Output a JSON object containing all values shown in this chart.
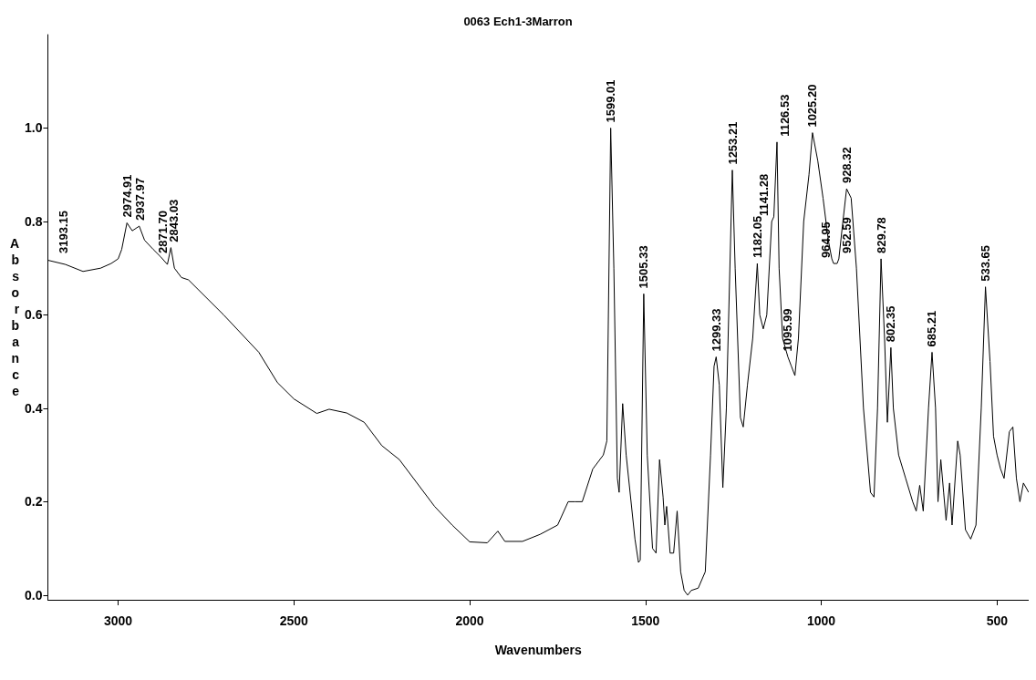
{
  "chart_data": {
    "type": "line",
    "title": "0063 Ech1-3Marron",
    "xlabel": "Wavenumbers",
    "ylabel": "Absorbance",
    "xlim": [
      3200,
      410
    ],
    "ylim": [
      -0.01,
      1.2
    ],
    "xticks": [
      3000,
      2500,
      2000,
      1500,
      1000,
      500
    ],
    "yticks": [
      {
        "value": 0,
        "label": "0.0"
      },
      {
        "value": 0.2,
        "label": "0.2"
      },
      {
        "value": 0.4,
        "label": "0.4"
      },
      {
        "value": 0.6,
        "label": "0.6"
      },
      {
        "value": 0.8,
        "label": "0.8"
      },
      {
        "value": 1.0,
        "label": "1.0"
      }
    ],
    "grid": false,
    "marker": "none",
    "line_style": "solid",
    "x": [
      3200,
      3150,
      3100,
      3050,
      3020,
      3000,
      2990,
      2975,
      2960,
      2940,
      2925,
      2900,
      2880,
      2860,
      2850,
      2840,
      2820,
      2800,
      2700,
      2600,
      2547,
      2500,
      2435,
      2400,
      2350,
      2300,
      2250,
      2200,
      2100,
      2050,
      2000,
      1950,
      1920,
      1900,
      1850,
      1800,
      1750,
      1720,
      1700,
      1680,
      1650,
      1620,
      1610,
      1599,
      1590,
      1580,
      1575,
      1565,
      1555,
      1530,
      1520,
      1515,
      1505,
      1495,
      1480,
      1470,
      1460,
      1450,
      1445,
      1440,
      1430,
      1420,
      1410,
      1400,
      1390,
      1380,
      1370,
      1350,
      1330,
      1315,
      1305,
      1299,
      1290,
      1280,
      1270,
      1253,
      1245,
      1230,
      1222,
      1210,
      1195,
      1182,
      1175,
      1165,
      1155,
      1141,
      1135,
      1126,
      1120,
      1110,
      1095,
      1085,
      1075,
      1065,
      1050,
      1035,
      1025,
      1010,
      995,
      980,
      970,
      965,
      955,
      950,
      940,
      928,
      915,
      900,
      880,
      860,
      850,
      840,
      830,
      820,
      812,
      802,
      795,
      780,
      760,
      740,
      730,
      720,
      710,
      695,
      685,
      675,
      668,
      660,
      652,
      645,
      635,
      628,
      612,
      605,
      590,
      575,
      560,
      545,
      533,
      520,
      510,
      500,
      490,
      480,
      465,
      455,
      445,
      435,
      425,
      410
    ],
    "series": [
      {
        "color": "#000000",
        "values": [
          0.717,
          0.708,
          0.693,
          0.7,
          0.71,
          0.72,
          0.74,
          0.797,
          0.78,
          0.79,
          0.76,
          0.74,
          0.725,
          0.708,
          0.744,
          0.7,
          0.68,
          0.675,
          0.6,
          0.52,
          0.455,
          0.42,
          0.389,
          0.398,
          0.39,
          0.37,
          0.32,
          0.29,
          0.19,
          0.15,
          0.114,
          0.112,
          0.137,
          0.115,
          0.115,
          0.13,
          0.15,
          0.2,
          0.2,
          0.2,
          0.27,
          0.3,
          0.33,
          1.0,
          0.7,
          0.25,
          0.22,
          0.41,
          0.3,
          0.12,
          0.07,
          0.075,
          0.645,
          0.3,
          0.1,
          0.09,
          0.29,
          0.21,
          0.15,
          0.19,
          0.09,
          0.09,
          0.18,
          0.05,
          0.01,
          0.0,
          0.01,
          0.015,
          0.05,
          0.3,
          0.49,
          0.51,
          0.45,
          0.23,
          0.4,
          0.91,
          0.7,
          0.38,
          0.36,
          0.45,
          0.55,
          0.71,
          0.6,
          0.57,
          0.6,
          0.8,
          0.81,
          0.97,
          0.7,
          0.55,
          0.51,
          0.49,
          0.47,
          0.55,
          0.8,
          0.9,
          0.99,
          0.93,
          0.85,
          0.76,
          0.72,
          0.71,
          0.71,
          0.72,
          0.79,
          0.87,
          0.85,
          0.7,
          0.4,
          0.22,
          0.21,
          0.4,
          0.72,
          0.55,
          0.37,
          0.53,
          0.4,
          0.3,
          0.25,
          0.2,
          0.18,
          0.235,
          0.18,
          0.4,
          0.52,
          0.4,
          0.2,
          0.29,
          0.22,
          0.16,
          0.24,
          0.15,
          0.33,
          0.3,
          0.14,
          0.12,
          0.15,
          0.4,
          0.66,
          0.5,
          0.34,
          0.3,
          0.27,
          0.25,
          0.35,
          0.36,
          0.25,
          0.2,
          0.24,
          0.22
        ]
      }
    ],
    "annotations": [
      {
        "text": "3193.15",
        "x": 3193,
        "y": 0.72
      },
      {
        "text": "2974.91",
        "x": 2975,
        "y": 0.797
      },
      {
        "text": "2937.97",
        "x": 2938,
        "y": 0.79
      },
      {
        "text": "2871.70",
        "x": 2872,
        "y": 0.72
      },
      {
        "text": "2843.03",
        "x": 2843,
        "y": 0.744
      },
      {
        "text": "1599.01",
        "x": 1599,
        "y": 1.0
      },
      {
        "text": "1505.33",
        "x": 1505,
        "y": 0.645
      },
      {
        "text": "1299.33",
        "x": 1299,
        "y": 0.51
      },
      {
        "text": "1253.21",
        "x": 1253,
        "y": 0.91
      },
      {
        "text": "1182.05",
        "x": 1182,
        "y": 0.71
      },
      {
        "text": "1141.28",
        "x": 1141,
        "y": 0.8
      },
      {
        "text": "1126.53",
        "x": 1126,
        "y": 0.97
      },
      {
        "text": "1095.99",
        "x": 1095,
        "y": 0.51
      },
      {
        "text": "1025.20",
        "x": 1025,
        "y": 0.99
      },
      {
        "text": "964.95",
        "x": 965,
        "y": 0.71
      },
      {
        "text": "952.59",
        "x": 952,
        "y": 0.72
      },
      {
        "text": "928.32",
        "x": 928,
        "y": 0.87
      },
      {
        "text": "829.78",
        "x": 830,
        "y": 0.72
      },
      {
        "text": "802.35",
        "x": 802,
        "y": 0.53
      },
      {
        "text": "685.21",
        "x": 685,
        "y": 0.52
      },
      {
        "text": "533.65",
        "x": 533,
        "y": 0.66
      }
    ]
  }
}
